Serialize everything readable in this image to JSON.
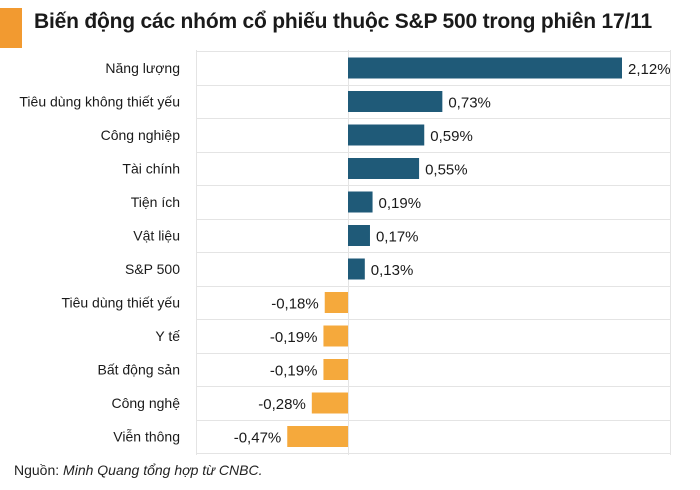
{
  "title": "Biến động các nhóm cổ phiếu thuộc S&P 500 trong phiên 17/11",
  "source": {
    "prefix": "Nguồn: ",
    "text": "Minh Quang tổng hợp từ CNBC."
  },
  "colors": {
    "accent": "#f29a30",
    "positive": "#1f5a78",
    "negative": "#f5a93c",
    "grid": "#e4e4e4",
    "text": "#1a1a1a"
  },
  "chart_data": {
    "type": "bar",
    "orientation": "horizontal",
    "categories": [
      "Năng lượng",
      "Tiêu dùng không thiết yếu",
      "Công nghiệp",
      "Tài chính",
      "Tiện ích",
      "Vật liệu",
      "S&P 500",
      "Tiêu dùng thiết yếu",
      "Y tế",
      "Bất động sản",
      "Công nghệ",
      "Viễn thông"
    ],
    "values": [
      2.12,
      0.73,
      0.59,
      0.55,
      0.19,
      0.17,
      0.13,
      -0.18,
      -0.19,
      -0.19,
      -0.28,
      -0.47
    ],
    "data_labels": [
      "2,12%",
      "0,73%",
      "0,59%",
      "0,55%",
      "0,19%",
      "0,17%",
      "0,13%",
      "-0,18%",
      "-0,19%",
      "-0,19%",
      "-0,28%",
      "-0,47%"
    ],
    "unit": "%",
    "grid": true,
    "legend": false
  }
}
